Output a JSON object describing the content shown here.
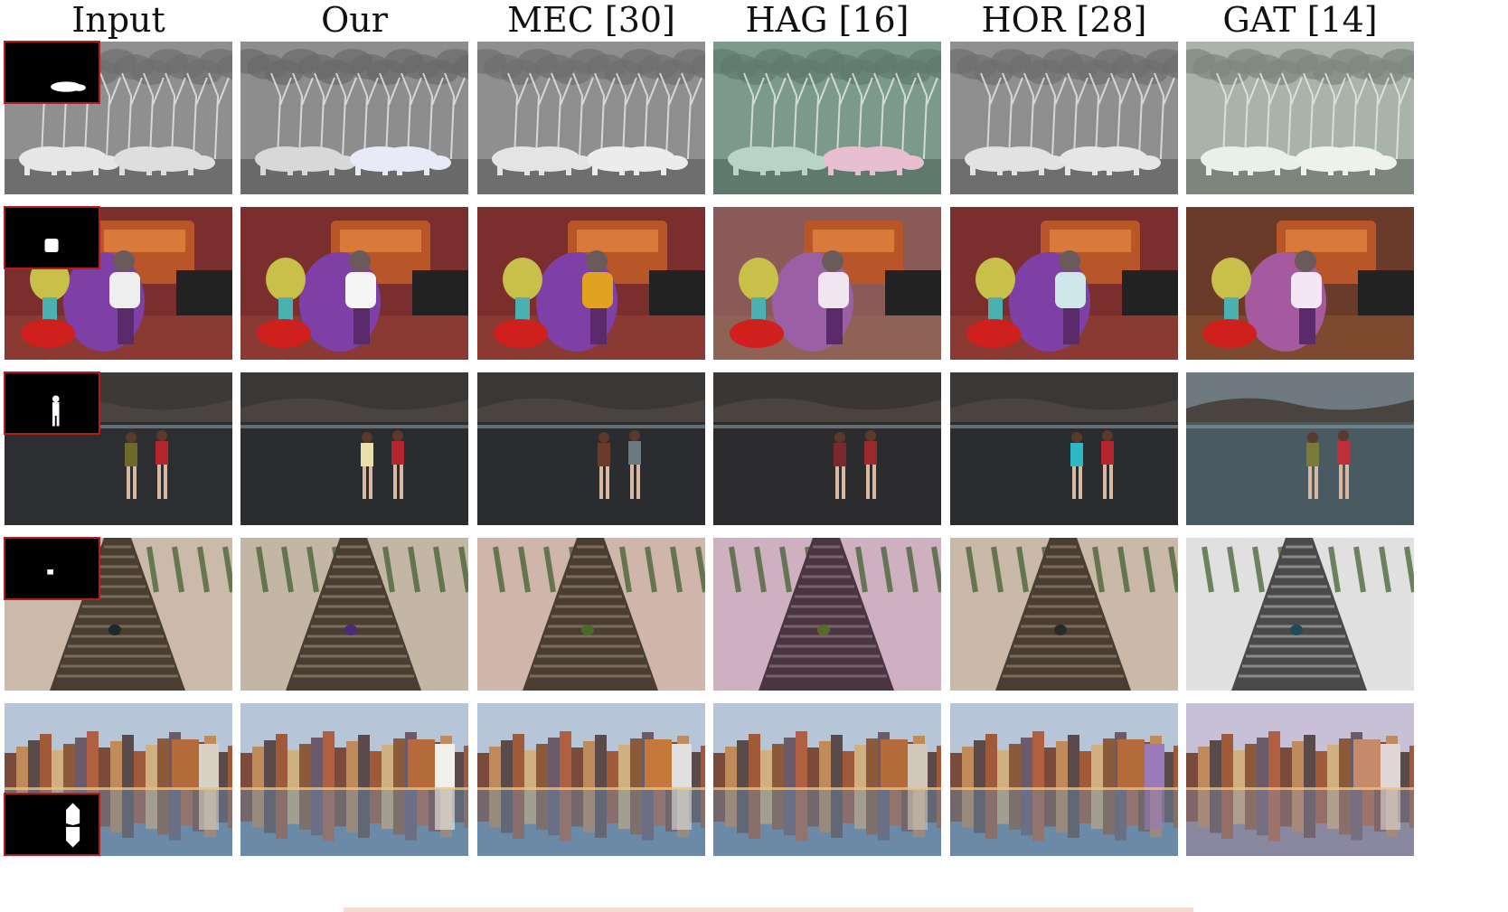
{
  "columns": [
    "Input",
    "Our",
    "MEC [30]",
    "HAG [16]",
    "HOR [28]",
    "GAT [14]"
  ],
  "rows": [
    {
      "scene": "rhinos",
      "mask_position": "top-left",
      "palette": {
        "Input": {
          "sky": "#8f8f8f",
          "ground": "#6e6e6e",
          "subject": "#e6e6e6",
          "subject2": "#dedede"
        },
        "Our": {
          "sky": "#8d8d8d",
          "ground": "#6a6a6a",
          "subject": "#d8d8d8",
          "subject2": "#e9eaf7"
        },
        "MEC [30]": {
          "sky": "#8f8f8f",
          "ground": "#6e6e6e",
          "subject": "#e4e4e4",
          "subject2": "#ececec"
        },
        "HAG [16]": {
          "sky": "#7c9a8c",
          "ground": "#5f7a6c",
          "subject": "#b9d4c7",
          "subject2": "#e8bfd0"
        },
        "HOR [28]": {
          "sky": "#8f8f8f",
          "ground": "#6e6e6e",
          "subject": "#e2e2e2",
          "subject2": "#e6e6e6"
        },
        "GAT [14]": {
          "sky": "#a9b3a9",
          "ground": "#7d867d",
          "subject": "#e8f0ea",
          "subject2": "#eef2ea"
        }
      }
    },
    {
      "scene": "toon-room",
      "mask_position": "top-left",
      "palette": {
        "Input": {
          "sky": "#7a2e2e",
          "ground": "#8a3a33",
          "subject": "#eeeeee",
          "subject2": "#7e3fa6"
        },
        "Our": {
          "sky": "#7a2e2e",
          "ground": "#8a3a33",
          "subject": "#f5f5f5",
          "subject2": "#7e3fa6"
        },
        "MEC [30]": {
          "sky": "#7a2e2e",
          "ground": "#8a3a33",
          "subject": "#e0a21f",
          "subject2": "#7e3fa6"
        },
        "HAG [16]": {
          "sky": "#8a5a58",
          "ground": "#8f6256",
          "subject": "#f0e6f0",
          "subject2": "#9b5fa6"
        },
        "HOR [28]": {
          "sky": "#7a2e2e",
          "ground": "#8a3a33",
          "subject": "#cfe6ea",
          "subject2": "#7e3fa6"
        },
        "GAT [14]": {
          "sky": "#6a3a2a",
          "ground": "#7d4a30",
          "subject": "#f4e6f4",
          "subject2": "#a55aa0"
        }
      }
    },
    {
      "scene": "beach",
      "mask_position": "top-left",
      "palette": {
        "Input": {
          "sky": "#3c3a38",
          "ground": "#2c2e31",
          "subject": "#6b6a2a",
          "subject2": "#b3262d"
        },
        "Our": {
          "sky": "#3a3836",
          "ground": "#2a2c2f",
          "subject": "#e8e0a8",
          "subject2": "#b3262d"
        },
        "MEC [30]": {
          "sky": "#3a3836",
          "ground": "#2a2c2f",
          "subject": "#6b3a2a",
          "subject2": "#6a7a7e"
        },
        "HAG [16]": {
          "sky": "#3a3634",
          "ground": "#2c2c2e",
          "subject": "#7a2a2a",
          "subject2": "#9a2a2f"
        },
        "HOR [28]": {
          "sky": "#3a3836",
          "ground": "#2a2c2f",
          "subject": "#2fb7c4",
          "subject2": "#b3262d"
        },
        "GAT [14]": {
          "sky": "#6e7a80",
          "ground": "#4a5a62",
          "subject": "#7a7a3a",
          "subject2": "#c0303a"
        }
      }
    },
    {
      "scene": "stairs",
      "mask_position": "top-left",
      "palette": {
        "Input": {
          "sky": "#7a6a58",
          "ground": "#4a3e32",
          "subject": "#1e2a2a",
          "subject2": "#cbb9aa"
        },
        "Our": {
          "sky": "#7d6e5c",
          "ground": "#4a3e32",
          "subject": "#4a2a7a",
          "subject2": "#c4b6a4"
        },
        "MEC [30]": {
          "sky": "#7d6a5a",
          "ground": "#4a3e32",
          "subject": "#4a6a2a",
          "subject2": "#cfb5aa"
        },
        "HAG [16]": {
          "sky": "#7d6070",
          "ground": "#4a3640",
          "subject": "#5a6a2a",
          "subject2": "#cfb0c0"
        },
        "HOR [28]": {
          "sky": "#7d6a58",
          "ground": "#4a3e32",
          "subject": "#2a2a2a",
          "subject2": "#cab8a8"
        },
        "GAT [14]": {
          "sky": "#8a8a8a",
          "ground": "#4a4a4a",
          "subject": "#1e4a5a",
          "subject2": "#e0e0e0"
        }
      }
    },
    {
      "scene": "canal",
      "mask_position": "bottom-left",
      "palette": {
        "Input": {
          "sky": "#b6c6d8",
          "ground": "#6a8aa8",
          "subject": "#d9d2c4",
          "subject2": "#b46a3a"
        },
        "Our": {
          "sky": "#b6c6d8",
          "ground": "#6a8aa8",
          "subject": "#f2f0ec",
          "subject2": "#b46a3a"
        },
        "MEC [30]": {
          "sky": "#b6c6d8",
          "ground": "#6a8aa8",
          "subject": "#e0e0e0",
          "subject2": "#c4783a"
        },
        "HAG [16]": {
          "sky": "#b6c6d8",
          "ground": "#6a8aa8",
          "subject": "#d0c8b8",
          "subject2": "#b46a3a"
        },
        "HOR [28]": {
          "sky": "#b6c6d8",
          "ground": "#6a8aa8",
          "subject": "#9a7ab8",
          "subject2": "#b46a3a"
        },
        "GAT [14]": {
          "sky": "#c8c0d6",
          "ground": "#8a88a0",
          "subject": "#e0d6d6",
          "subject2": "#c48a6a"
        }
      }
    }
  ]
}
